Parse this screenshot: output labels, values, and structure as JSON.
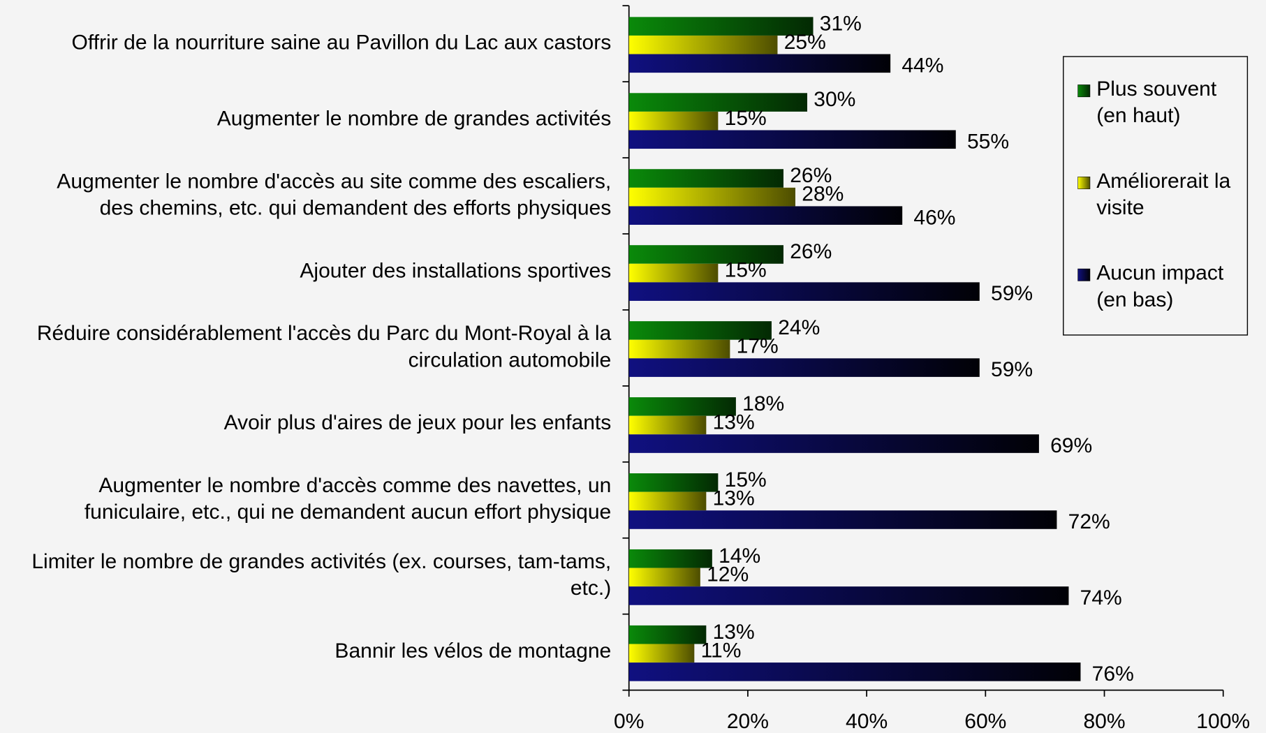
{
  "chart_data": {
    "type": "hbar",
    "categories": [
      "Offrir de la nourriture saine au Pavillon du Lac aux castors",
      "Augmenter le nombre de grandes activités",
      "Augmenter le nombre d'accès au site comme des escaliers,\ndes chemins, etc. qui demandent des efforts physiques",
      "Ajouter des installations sportives",
      "Réduire considérablement l'accès du Parc du Mont-Royal à la\ncirculation automobile",
      "Avoir plus d'aires de jeux pour les enfants",
      "Augmenter le nombre d'accès comme des navettes, un\nfuniculaire, etc., qui ne demandent aucun effort physique",
      "Limiter le nombre de grandes activités (ex. courses, tam-tams,\netc.)",
      "Bannir les vélos de montagne"
    ],
    "series": [
      {
        "name": "Plus souvent\n(en haut)",
        "color": "#0a8a0a",
        "values": [
          31,
          30,
          26,
          26,
          24,
          18,
          15,
          14,
          13
        ],
        "value_labels": [
          "31%",
          "30%",
          "26%",
          "26%",
          "24%",
          "18%",
          "15%",
          "14%",
          "13%"
        ]
      },
      {
        "name": "Améliorerait la\nvisite",
        "color": "#ffff00",
        "values": [
          25,
          15,
          28,
          15,
          17,
          13,
          13,
          12,
          11
        ],
        "value_labels": [
          "25%",
          "15%",
          "28%",
          "15%",
          "17%",
          "13%",
          "13%",
          "12%",
          "11%"
        ]
      },
      {
        "name": "Aucun impact\n(en bas)",
        "color": "#101080",
        "values": [
          44,
          55,
          46,
          59,
          59,
          69,
          72,
          74,
          76
        ],
        "value_labels": [
          "44%",
          "55%",
          "46%",
          "59%",
          "59%",
          "69%",
          "72%",
          "74%",
          "76%"
        ]
      }
    ],
    "xlim": [
      0,
      100
    ],
    "xticks": [
      {
        "value": 0,
        "label": "0%"
      },
      {
        "value": 20,
        "label": "20%"
      },
      {
        "value": 40,
        "label": "40%"
      },
      {
        "value": 60,
        "label": "60%"
      },
      {
        "value": 80,
        "label": "80%"
      },
      {
        "value": 100,
        "label": "100%"
      }
    ],
    "legend": "right"
  }
}
